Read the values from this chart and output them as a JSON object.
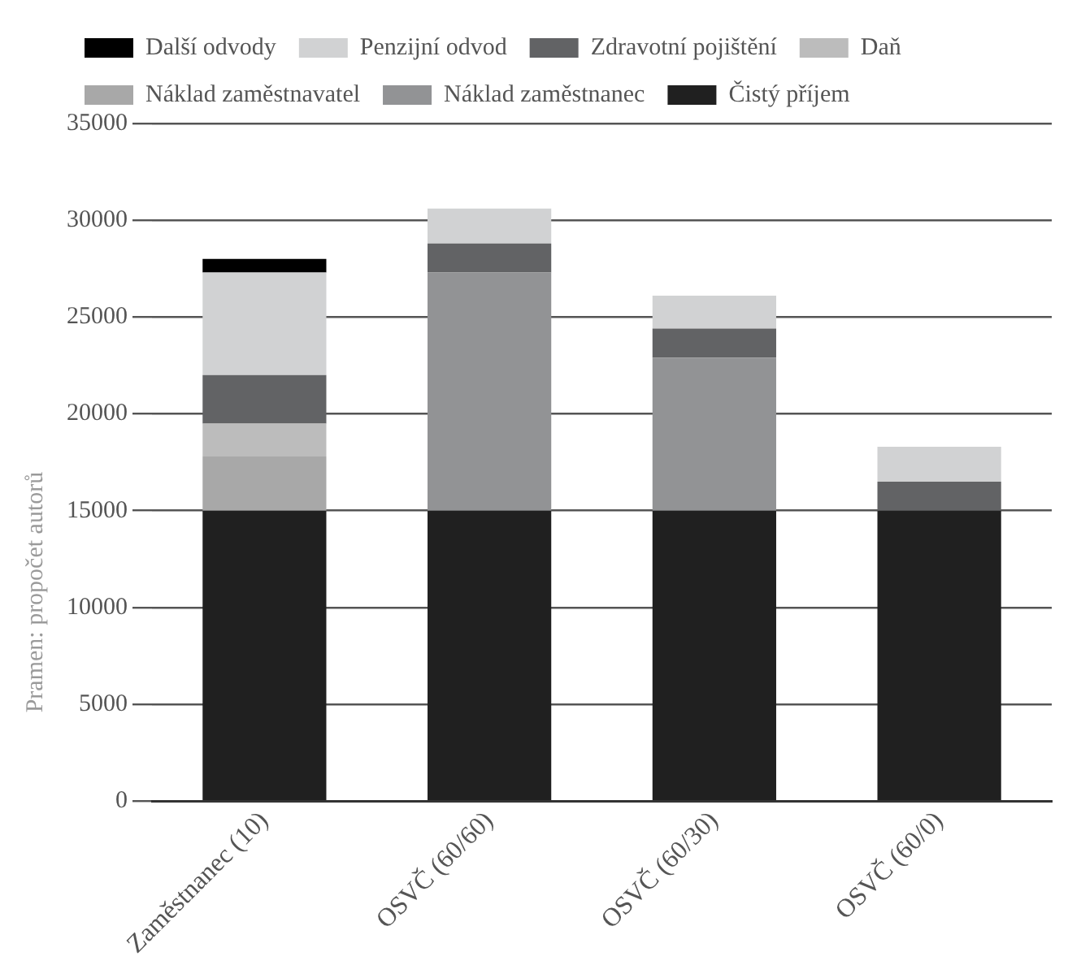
{
  "chart_data": {
    "type": "bar",
    "stacked": true,
    "categories": [
      "Zaměstnanec (10)",
      "OSVČ (60/60)",
      "OSVČ (60/30)",
      "OSVČ (60/0)"
    ],
    "series": [
      {
        "name": "Čistý příjem",
        "color": "#202020",
        "values": [
          15000,
          15000,
          15000,
          15000
        ]
      },
      {
        "name": "Náklad zaměstnanec",
        "color": "#929395",
        "values": [
          null,
          12300,
          7900,
          null
        ]
      },
      {
        "name": "Náklad zaměstnavatel",
        "color": "#a8a8a8",
        "values": [
          2800,
          null,
          null,
          null
        ]
      },
      {
        "name": "Daň",
        "color": "#bcbcbc",
        "values": [
          1700,
          null,
          null,
          null
        ]
      },
      {
        "name": "Zdravotní pojištění",
        "color": "#626365",
        "values": [
          2500,
          1500,
          1500,
          1500
        ]
      },
      {
        "name": "Penzijní odvod",
        "color": "#d1d2d3",
        "values": [
          5300,
          1800,
          1700,
          1800
        ]
      },
      {
        "name": "Další odvody",
        "color": "#000000",
        "values": [
          700,
          null,
          null,
          null
        ]
      }
    ],
    "ylim": [
      0,
      35000
    ],
    "yticks": [
      0,
      5000,
      10000,
      15000,
      20000,
      25000,
      30000,
      35000
    ],
    "grid": "y",
    "legend": "top",
    "annotations": [
      "Pramen: propočet autorů"
    ]
  }
}
